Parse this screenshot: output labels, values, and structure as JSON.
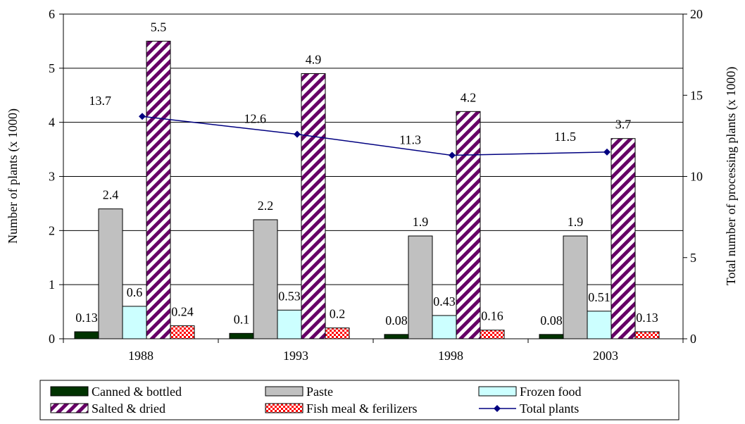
{
  "chart_data": {
    "type": "bar",
    "categories": [
      "1988",
      "1993",
      "1998",
      "2003"
    ],
    "ylabel": "Number of plants (x 1000)",
    "y2label": "Total number of processing plants (x 1000)",
    "ylim": [
      0,
      6
    ],
    "y2lim": [
      0,
      20
    ],
    "yticks": [
      "0",
      "1",
      "2",
      "3",
      "4",
      "5",
      "6"
    ],
    "y2ticks": [
      "0",
      "5",
      "10",
      "15",
      "20"
    ],
    "grid": true,
    "legend_position": "bottom",
    "series": [
      {
        "name": "Canned & bottled",
        "values": [
          0.13,
          0.1,
          0.08,
          0.08
        ],
        "labels": [
          "0.13",
          "0.1",
          "0.08",
          "0.08"
        ],
        "color": "#003300",
        "pattern": "solid"
      },
      {
        "name": "Paste",
        "values": [
          2.4,
          2.2,
          1.9,
          1.9
        ],
        "labels": [
          "2.4",
          "2.2",
          "1.9",
          "1.9"
        ],
        "color": "#c0c0c0",
        "pattern": "solid"
      },
      {
        "name": "Frozen food",
        "values": [
          0.6,
          0.53,
          0.43,
          0.51
        ],
        "labels": [
          "0.6",
          "0.53",
          "0.43",
          "0.51"
        ],
        "color": "#ccffff",
        "pattern": "solid"
      },
      {
        "name": "Salted & dried",
        "values": [
          5.5,
          4.9,
          4.2,
          3.7
        ],
        "labels": [
          "5.5",
          "4.9",
          "4.2",
          "3.7"
        ],
        "color": "#660066",
        "pattern": "diagonal"
      },
      {
        "name": "Fish meal & ferilizers",
        "values": [
          0.24,
          0.2,
          0.16,
          0.13
        ],
        "labels": [
          "0.24",
          "0.2",
          "0.16",
          "0.13"
        ],
        "color": "#ff0000",
        "pattern": "checker"
      }
    ],
    "line_series": {
      "name": "Total plants",
      "axis": "right",
      "values": [
        13.7,
        12.6,
        11.3,
        11.5
      ],
      "labels": [
        "13.7",
        "12.6",
        "11.3",
        "11.5"
      ],
      "color": "#000080",
      "marker": "diamond"
    }
  }
}
